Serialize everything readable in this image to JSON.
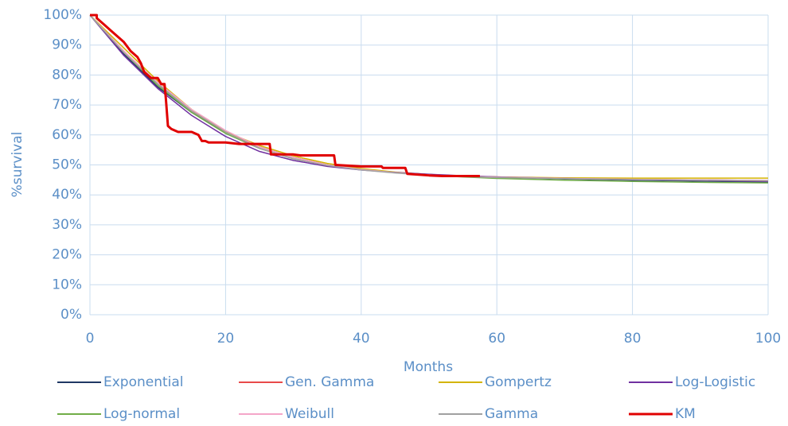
{
  "chart_data": {
    "type": "line",
    "x_label": "Months",
    "y_label": "%survival",
    "xlim": [
      0,
      100
    ],
    "xticks": [
      0,
      20,
      40,
      60,
      80,
      100
    ],
    "ylim": [
      0,
      100
    ],
    "yticks": [
      {
        "value": 0,
        "label": "0%"
      },
      {
        "value": 10,
        "label": "10%"
      },
      {
        "value": 20,
        "label": "20%"
      },
      {
        "value": 30,
        "label": "30%"
      },
      {
        "value": 40,
        "label": "40%"
      },
      {
        "value": 50,
        "label": "50%"
      },
      {
        "value": 60,
        "label": "60%"
      },
      {
        "value": 70,
        "label": "70%"
      },
      {
        "value": 80,
        "label": "80%"
      },
      {
        "value": 90,
        "label": "90%"
      },
      {
        "value": 100,
        "label": "100%"
      }
    ],
    "grid": true,
    "legend": "bottom",
    "x": [
      0,
      5,
      10,
      15,
      20,
      25,
      30,
      35,
      40,
      45,
      50,
      55,
      60,
      70,
      80,
      90,
      100
    ],
    "series": [
      {
        "name": "Exponential",
        "color": "#1f3864",
        "line_width": 1.5,
        "values": [
          100,
          87,
          76,
          67.5,
          61,
          56,
          52.5,
          50,
          48.5,
          47.5,
          46.8,
          46.3,
          45.9,
          45.3,
          44.9,
          44.6,
          44.3
        ]
      },
      {
        "name": "Gen. Gamma",
        "color": "#e84a4a",
        "line_width": 1.5,
        "values": [
          100,
          88,
          77,
          68,
          61,
          56,
          52.5,
          50,
          48.5,
          47.5,
          46.8,
          46.3,
          46,
          45.5,
          45.2,
          45,
          44.8
        ]
      },
      {
        "name": "Gompertz",
        "color": "#d4b400",
        "line_width": 1.5,
        "values": [
          100,
          89,
          78,
          68.5,
          61,
          56.5,
          53,
          50.5,
          48.8,
          47.6,
          46.8,
          46.3,
          46,
          45.7,
          45.6,
          45.6,
          45.6
        ]
      },
      {
        "name": "Log-Logistic",
        "color": "#7030a0",
        "line_width": 1.5,
        "values": [
          100,
          86.5,
          75.5,
          66.5,
          59.5,
          54.5,
          51.5,
          49.5,
          48.3,
          47.5,
          46.9,
          46.4,
          46,
          45.5,
          45.1,
          44.8,
          44.5
        ]
      },
      {
        "name": "Log-normal",
        "color": "#70ad47",
        "line_width": 1.5,
        "values": [
          100,
          87.5,
          76.5,
          67.5,
          60.5,
          55.5,
          52,
          50,
          48.5,
          47.4,
          46.6,
          46,
          45.5,
          44.9,
          44.5,
          44.2,
          44
        ]
      },
      {
        "name": "Weibull",
        "color": "#f4a6c8",
        "line_width": 1.5,
        "values": [
          100,
          88,
          77.5,
          68.5,
          61.5,
          56,
          52.5,
          50,
          48.5,
          47.4,
          46.7,
          46.2,
          45.9,
          45.5,
          45.2,
          45,
          44.8
        ]
      },
      {
        "name": "Gamma",
        "color": "#a0a0a0",
        "line_width": 1.5,
        "values": [
          100,
          87.5,
          77,
          68,
          61,
          55.5,
          52,
          49.8,
          48.3,
          47.3,
          46.6,
          46.1,
          45.8,
          45.4,
          45.1,
          44.9,
          44.7
        ]
      },
      {
        "name": "KM",
        "color": "#e00000",
        "line_width": 3,
        "x": [
          0,
          1,
          1,
          2,
          3,
          4,
          5,
          6,
          7,
          7.5,
          8,
          9,
          10,
          10.5,
          11,
          11.2,
          11.5,
          12,
          13,
          15,
          16,
          16.5,
          17,
          17.5,
          20,
          22,
          26.5,
          26.7,
          30,
          31,
          36,
          36.2,
          40,
          43,
          43.2,
          46.5,
          46.8,
          50,
          52,
          57.5
        ],
        "values": [
          100,
          100,
          99,
          97,
          95,
          93,
          91,
          88,
          86,
          84,
          81,
          79,
          79,
          77,
          77,
          72,
          63,
          62,
          61,
          61,
          60,
          58,
          58,
          57.5,
          57.5,
          57,
          57,
          53.5,
          53.5,
          53.2,
          53.2,
          50,
          49.5,
          49.5,
          49,
          49,
          47,
          46.5,
          46.3,
          46.3
        ]
      }
    ]
  }
}
